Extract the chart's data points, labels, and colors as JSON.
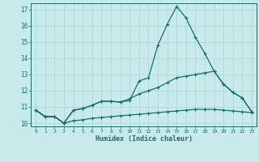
{
  "xlabel": "Humidex (Indice chaleur)",
  "bg_color": "#c8eaea",
  "grid_color": "#b0d8d8",
  "line_color": "#1a6b6b",
  "xlim": [
    -0.5,
    23.5
  ],
  "ylim": [
    9.8,
    17.4
  ],
  "xticks": [
    0,
    1,
    2,
    3,
    4,
    5,
    6,
    7,
    8,
    9,
    10,
    11,
    12,
    13,
    14,
    15,
    16,
    17,
    18,
    19,
    20,
    21,
    22,
    23
  ],
  "yticks": [
    10,
    11,
    12,
    13,
    14,
    15,
    16,
    17
  ],
  "series1_x": [
    0,
    1,
    2,
    3,
    4,
    5,
    6,
    7,
    8,
    9,
    10,
    11,
    12,
    13,
    14,
    15,
    16,
    17,
    18,
    19,
    20,
    21,
    22,
    23
  ],
  "series1_y": [
    10.8,
    10.4,
    10.4,
    10.0,
    10.8,
    10.9,
    11.1,
    11.35,
    11.35,
    11.3,
    11.4,
    12.6,
    12.8,
    14.8,
    16.1,
    17.2,
    16.5,
    15.3,
    14.3,
    13.2,
    12.4,
    11.9,
    11.55,
    10.7
  ],
  "series2_x": [
    0,
    1,
    2,
    3,
    4,
    5,
    6,
    7,
    8,
    9,
    10,
    11,
    12,
    13,
    14,
    15,
    16,
    17,
    18,
    19,
    20,
    21,
    22,
    23
  ],
  "series2_y": [
    10.8,
    10.4,
    10.4,
    10.0,
    10.8,
    10.9,
    11.1,
    11.35,
    11.35,
    11.3,
    11.5,
    11.8,
    12.0,
    12.2,
    12.5,
    12.8,
    12.9,
    13.0,
    13.1,
    13.2,
    12.4,
    11.9,
    11.55,
    10.7
  ],
  "series3_x": [
    0,
    1,
    2,
    3,
    4,
    5,
    6,
    7,
    8,
    9,
    10,
    11,
    12,
    13,
    14,
    15,
    16,
    17,
    18,
    19,
    20,
    21,
    22,
    23
  ],
  "series3_y": [
    10.8,
    10.4,
    10.4,
    10.0,
    10.15,
    10.2,
    10.3,
    10.35,
    10.4,
    10.45,
    10.5,
    10.55,
    10.6,
    10.65,
    10.7,
    10.75,
    10.8,
    10.85,
    10.85,
    10.85,
    10.8,
    10.75,
    10.7,
    10.65
  ]
}
